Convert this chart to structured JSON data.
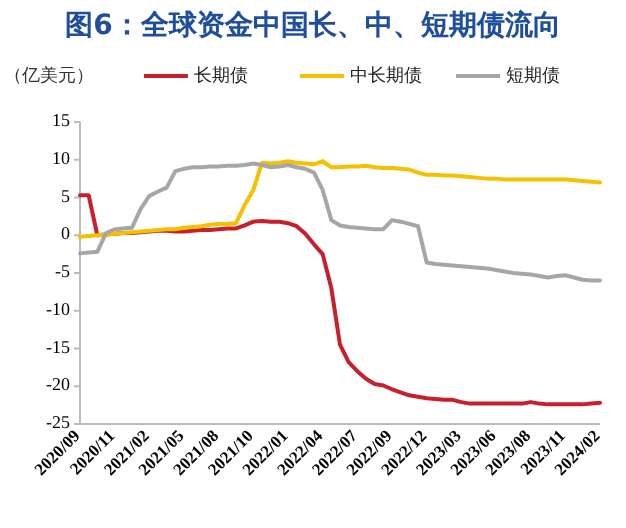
{
  "chart_data": {
    "type": "line",
    "title": "图6：全球资金中国长、中、短期债流向",
    "ylabel": "（亿美元）",
    "categories": [
      "2020/09",
      null,
      null,
      null,
      "2020/11",
      null,
      null,
      null,
      "2021/02",
      null,
      null,
      null,
      "2021/05",
      null,
      null,
      null,
      "2021/08",
      null,
      null,
      null,
      "2021/10",
      null,
      null,
      null,
      "2022/01",
      null,
      null,
      null,
      "2022/04",
      null,
      null,
      null,
      "2022/07",
      null,
      null,
      null,
      "2022/09",
      null,
      null,
      null,
      "2022/12",
      null,
      null,
      null,
      "2023/03",
      null,
      null,
      null,
      "2023/06",
      null,
      null,
      null,
      "2023/08",
      null,
      null,
      null,
      "2023/11",
      null,
      null,
      null,
      "2024/02"
    ],
    "series": [
      {
        "name": "长期债",
        "color": "#c8202a",
        "values": [
          5.3,
          5.3,
          0,
          0.1,
          0.2,
          0.3,
          0.3,
          0.4,
          0.5,
          0.6,
          0.6,
          0.5,
          0.5,
          0.6,
          0.7,
          0.7,
          0.8,
          0.9,
          0.9,
          1.3,
          1.8,
          1.9,
          1.8,
          1.8,
          1.6,
          1.2,
          0.2,
          -1.2,
          -2.5,
          -7,
          -14.5,
          -16.8,
          -18,
          -19,
          -19.7,
          -19.9,
          -20.4,
          -20.8,
          -21.2,
          -21.4,
          -21.6,
          -21.7,
          -21.8,
          -21.8,
          -22.1,
          -22.3,
          -22.3,
          -22.3,
          -22.3,
          -22.3,
          -22.3,
          -22.3,
          -22.1,
          -22.3,
          -22.4,
          -22.4,
          -22.4,
          -22.4,
          -22.4,
          -22.3,
          -22.2
        ]
      },
      {
        "name": "中长期债",
        "color": "#f5c000",
        "values": [
          -0.2,
          -0.1,
          0,
          0.1,
          0.2,
          0.3,
          0.4,
          0.5,
          0.6,
          0.7,
          0.8,
          0.8,
          1.0,
          1.1,
          1.2,
          1.4,
          1.5,
          1.5,
          1.6,
          4,
          6,
          9.6,
          9.5,
          9.6,
          9.8,
          9.6,
          9.5,
          9.4,
          9.8,
          9.0,
          9.0,
          9.1,
          9.1,
          9.2,
          9.0,
          8.9,
          8.9,
          8.8,
          8.7,
          8.3,
          8.0,
          8.0,
          7.9,
          7.9,
          7.8,
          7.7,
          7.6,
          7.5,
          7.5,
          7.4,
          7.4,
          7.4,
          7.4,
          7.4,
          7.4,
          7.4,
          7.4,
          7.3,
          7.2,
          7.1,
          7.0
        ]
      },
      {
        "name": "短期债",
        "color": "#a6a6a6",
        "values": [
          -2.4,
          -2.3,
          -2.2,
          0.3,
          0.8,
          0.9,
          1.0,
          3.5,
          5.2,
          5.8,
          6.3,
          8.5,
          8.8,
          9.0,
          9.0,
          9.1,
          9.1,
          9.2,
          9.2,
          9.3,
          9.5,
          9.3,
          9.0,
          9.1,
          9.3,
          9.0,
          8.8,
          8.3,
          6.0,
          2.0,
          1.3,
          1.1,
          1.0,
          0.9,
          0.8,
          0.8,
          2.0,
          1.8,
          1.5,
          1.2,
          -3.6,
          -3.8,
          -3.9,
          -4.0,
          -4.1,
          -4.2,
          -4.3,
          -4.4,
          -4.6,
          -4.8,
          -5.0,
          -5.1,
          -5.2,
          -5.4,
          -5.6,
          -5.4,
          -5.3,
          -5.6,
          -5.9,
          -6.0,
          -6.0
        ]
      }
    ],
    "ylim": [
      -25,
      15
    ],
    "yticks": [
      -25,
      -20,
      -15,
      -10,
      -5,
      0,
      5,
      10,
      15
    ],
    "legend": "top",
    "grid": false
  }
}
